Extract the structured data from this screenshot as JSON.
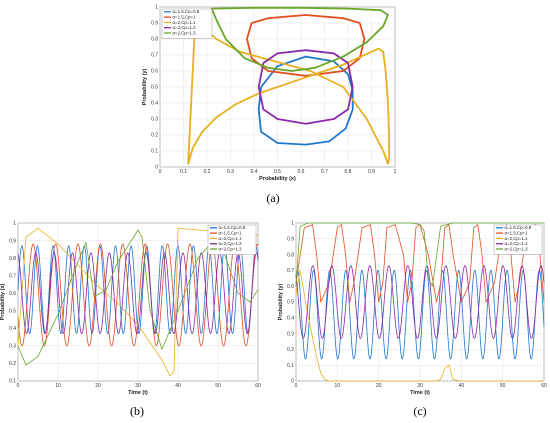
{
  "colors": {
    "blue": "#1f77d0",
    "red": "#e05020",
    "yellow": "#e8b020",
    "purple": "#8a2aa8",
    "green": "#6aa82a",
    "grid": "#e3e3e3",
    "axis": "#555555"
  },
  "legend_labels": [
    "α=1.5,Cp=0.8",
    "α=1.5,Cp=1",
    "α=2,Cp=1.1",
    "α=2,Cp=1.2",
    "α=2,Cp=1.3"
  ],
  "chart_data": [
    {
      "id": "a",
      "type": "line",
      "caption": "(a)",
      "xlabel": "Probability (x)",
      "ylabel": "Probability (y)",
      "xlim": [
        0,
        1
      ],
      "ylim": [
        0,
        1
      ],
      "xticks": [
        0,
        0.1,
        0.2,
        0.3,
        0.4,
        0.5,
        0.6,
        0.7,
        0.8,
        0.9,
        1
      ],
      "yticks": [
        0,
        0.1,
        0.2,
        0.3,
        0.4,
        0.5,
        0.6,
        0.7,
        0.8,
        0.9,
        1
      ],
      "xtick_labels": [
        "0",
        "0.1",
        "0.2",
        "0.3",
        "0.4",
        "0.5",
        "0.6",
        "0.7",
        "0.8",
        "0.9",
        "1"
      ],
      "ytick_labels": [
        "0",
        "0.1",
        "0.2",
        "0.3",
        "0.4",
        "0.5",
        "0.6",
        "0.7",
        "0.8",
        "0.9",
        "1"
      ],
      "grid": true,
      "legend": "top-left",
      "series": [
        {
          "name": "α=1.5,Cp=0.8",
          "color": "#1f77d0",
          "x": [
            0.62,
            0.74,
            0.8,
            0.82,
            0.82,
            0.79,
            0.72,
            0.62,
            0.5,
            0.43,
            0.42,
            0.43,
            0.5,
            0.62
          ],
          "y": [
            0.69,
            0.66,
            0.58,
            0.48,
            0.36,
            0.24,
            0.16,
            0.14,
            0.15,
            0.22,
            0.36,
            0.5,
            0.63,
            0.69
          ]
        },
        {
          "name": "α=1.5,Cp=1",
          "color": "#e05020",
          "x": [
            0.62,
            0.78,
            0.85,
            0.87,
            0.85,
            0.78,
            0.62,
            0.46,
            0.39,
            0.37,
            0.39,
            0.46,
            0.62
          ],
          "y": [
            0.57,
            0.6,
            0.68,
            0.8,
            0.9,
            0.93,
            0.95,
            0.93,
            0.9,
            0.8,
            0.68,
            0.6,
            0.57
          ]
        },
        {
          "name": "α=2,Cp=1.1",
          "color": "#e8b020",
          "x": [
            0.12,
            0.14,
            0.18,
            0.24,
            0.32,
            0.42,
            0.54,
            0.66,
            0.78,
            0.87,
            0.93,
            0.95,
            0.96,
            0.97,
            0.975,
            0.975,
            0.97,
            0.95,
            0.88,
            0.78,
            0.64,
            0.54,
            0.44,
            0.34,
            0.24,
            0.15,
            0.12
          ],
          "y": [
            0.02,
            0.12,
            0.22,
            0.31,
            0.39,
            0.46,
            0.52,
            0.58,
            0.64,
            0.7,
            0.74,
            0.72,
            0.6,
            0.4,
            0.2,
            0.05,
            0.02,
            0.1,
            0.3,
            0.5,
            0.6,
            0.64,
            0.68,
            0.72,
            0.8,
            0.92,
            0.02
          ]
        },
        {
          "name": "α=2,Cp=1.2",
          "color": "#8a2aa8",
          "x": [
            0.62,
            0.74,
            0.8,
            0.82,
            0.8,
            0.74,
            0.62,
            0.5,
            0.44,
            0.42,
            0.44,
            0.5,
            0.62
          ],
          "y": [
            0.73,
            0.71,
            0.65,
            0.5,
            0.36,
            0.3,
            0.27,
            0.3,
            0.36,
            0.5,
            0.65,
            0.71,
            0.73
          ]
        },
        {
          "name": "α=2,Cp=1.3",
          "color": "#6aa82a",
          "x": [
            0.22,
            0.4,
            0.6,
            0.8,
            0.94,
            0.97,
            0.95,
            0.88,
            0.78,
            0.66,
            0.56,
            0.46,
            0.36,
            0.28,
            0.24,
            0.22
          ],
          "y": [
            0.99,
            0.995,
            0.995,
            0.99,
            0.98,
            0.95,
            0.88,
            0.78,
            0.69,
            0.62,
            0.6,
            0.62,
            0.68,
            0.8,
            0.92,
            0.99
          ]
        }
      ]
    },
    {
      "id": "b",
      "type": "line",
      "caption": "(b)",
      "xlabel": "Time (t)",
      "ylabel": "Probability (x)",
      "xlim": [
        0,
        60
      ],
      "ylim": [
        0.1,
        1
      ],
      "xticks": [
        0,
        10,
        20,
        30,
        40,
        50,
        60
      ],
      "yticks": [
        0.1,
        0.2,
        0.3,
        0.4,
        0.5,
        0.6,
        0.7,
        0.8,
        0.9,
        1
      ],
      "xtick_labels": [
        "0",
        "10",
        "20",
        "30",
        "40",
        "50",
        "60"
      ],
      "ytick_labels": [
        "0.1",
        "0.2",
        "0.3",
        "0.4",
        "0.5",
        "0.6",
        "0.7",
        "0.8",
        "0.9",
        "1"
      ],
      "grid": true,
      "legend": "top-right",
      "series": [
        {
          "name": "α=1.5,Cp=0.8",
          "color": "#1f77d0",
          "model": "sin",
          "mean": 0.62,
          "amp": 0.25,
          "period": 3.9,
          "phase": 0
        },
        {
          "name": "α=1.5,Cp=1",
          "color": "#e05020",
          "model": "sin",
          "mean": 0.59,
          "amp": 0.29,
          "period": 5.6,
          "phase": 3.6
        },
        {
          "name": "α=2,Cp=1.1",
          "color": "#e8b020",
          "t": [
            0,
            2,
            5,
            10,
            15,
            20,
            25,
            30,
            33,
            36,
            38,
            39,
            40,
            45,
            50,
            55,
            60
          ],
          "v": [
            0.3,
            0.92,
            0.97,
            0.88,
            0.76,
            0.64,
            0.54,
            0.42,
            0.32,
            0.22,
            0.13,
            0.15,
            0.97,
            0.96,
            0.95,
            0.94,
            0.93
          ]
        },
        {
          "name": "α=2,Cp=1.2",
          "color": "#8a2aa8",
          "model": "sin",
          "mean": 0.6,
          "amp": 0.23,
          "period": 4.6,
          "phase": 1.8
        },
        {
          "name": "α=2,Cp=1.3",
          "color": "#6aa82a",
          "t": [
            0,
            2,
            5,
            10,
            15,
            17,
            19,
            22,
            25,
            30,
            31,
            33,
            36,
            40,
            45,
            50,
            55,
            58,
            60
          ],
          "v": [
            0.3,
            0.19,
            0.24,
            0.48,
            0.78,
            0.89,
            0.58,
            0.62,
            0.78,
            0.96,
            0.92,
            0.5,
            0.28,
            0.5,
            0.8,
            0.93,
            0.6,
            0.55,
            0.62
          ]
        }
      ]
    },
    {
      "id": "c",
      "type": "line",
      "caption": "(c)",
      "xlabel": "Time (t)",
      "ylabel": "Probability (y)",
      "xlim": [
        0,
        60
      ],
      "ylim": [
        0,
        1
      ],
      "xticks": [
        0,
        10,
        20,
        30,
        40,
        50,
        60
      ],
      "yticks": [
        0,
        0.1,
        0.2,
        0.3,
        0.4,
        0.5,
        0.6,
        0.7,
        0.8,
        0.9,
        1
      ],
      "xtick_labels": [
        "0",
        "10",
        "20",
        "30",
        "40",
        "50",
        "60"
      ],
      "ytick_labels": [
        "0",
        "0.1",
        "0.2",
        "0.3",
        "0.4",
        "0.5",
        "0.6",
        "0.7",
        "0.8",
        "0.9",
        "1"
      ],
      "grid": true,
      "legend": "top-right",
      "series": [
        {
          "name": "α=1.5,Cp=0.8",
          "color": "#1f77d0",
          "model": "sin",
          "mean": 0.42,
          "amp": 0.28,
          "period": 3.9,
          "phase": 1.0
        },
        {
          "name": "α=1.5,Cp=1",
          "color": "#e05020",
          "t": [
            0,
            2,
            4,
            5,
            6,
            8,
            10,
            11,
            12,
            13,
            14,
            16,
            18,
            19,
            20,
            21,
            22,
            24,
            26,
            27,
            28,
            29,
            30,
            32,
            34,
            35,
            36,
            37,
            38,
            40,
            42,
            43,
            44,
            45,
            46,
            48,
            50,
            51,
            52,
            53,
            54,
            56,
            58,
            59,
            60
          ],
          "v": [
            0.62,
            0.97,
            0.99,
            0.8,
            0.5,
            0.62,
            0.97,
            0.99,
            0.8,
            0.5,
            0.62,
            0.97,
            0.99,
            0.8,
            0.5,
            0.62,
            0.97,
            0.99,
            0.8,
            0.5,
            0.62,
            0.97,
            0.99,
            0.8,
            0.5,
            0.62,
            0.97,
            0.99,
            0.8,
            0.5,
            0.62,
            0.97,
            0.99,
            0.8,
            0.5,
            0.62,
            0.97,
            0.99,
            0.8,
            0.5,
            0.62,
            0.97,
            0.99,
            0.8,
            0.5
          ]
        },
        {
          "name": "α=2,Cp=1.1",
          "color": "#e8b020",
          "t": [
            0,
            1,
            3,
            5,
            6,
            7,
            8,
            10,
            15,
            20,
            25,
            30,
            32,
            34,
            35,
            36,
            37,
            38,
            40,
            42,
            45,
            50,
            55,
            60
          ],
          "v": [
            0.55,
            0.7,
            0.4,
            0.15,
            0.05,
            0.01,
            0.0,
            0.0,
            0.0,
            0.0,
            0.0,
            0.0,
            0.0,
            0.0,
            0.01,
            0.08,
            0.1,
            0.01,
            0.0,
            0.0,
            0.0,
            0.0,
            0.0,
            0.0
          ]
        },
        {
          "name": "α=2,Cp=1.2",
          "color": "#8a2aa8",
          "model": "sin",
          "mean": 0.5,
          "amp": 0.23,
          "period": 4.6,
          "phase": 2.3
        },
        {
          "name": "α=2,Cp=1.3",
          "color": "#6aa82a",
          "t": [
            0,
            1,
            2,
            3,
            5,
            10,
            15,
            20,
            25,
            28,
            30,
            31,
            32,
            33,
            35,
            38,
            40,
            45,
            50,
            55,
            60
          ],
          "v": [
            0.6,
            0.98,
            0.99,
            1.0,
            1.0,
            1.0,
            1.0,
            1.0,
            1.0,
            1.0,
            0.99,
            0.95,
            0.65,
            0.6,
            0.98,
            1.0,
            1.0,
            1.0,
            1.0,
            1.0,
            1.0
          ]
        }
      ]
    }
  ]
}
